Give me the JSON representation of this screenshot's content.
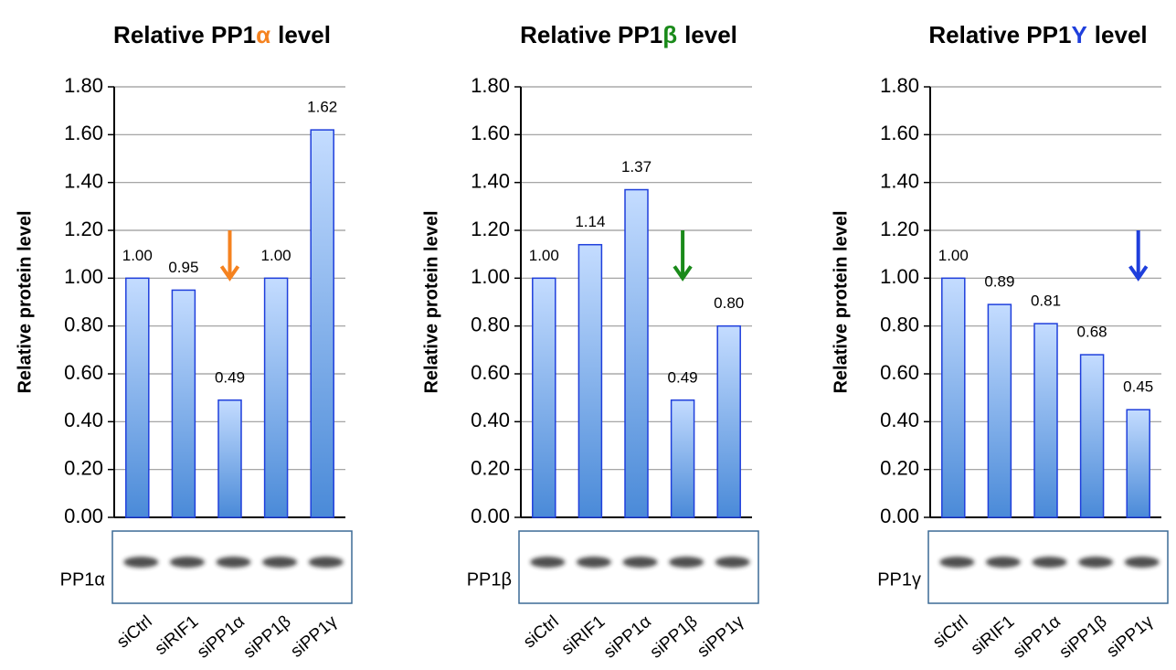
{
  "chart_data": [
    {
      "type": "bar",
      "title": {
        "prefix": "Relative PP1",
        "symbol": "α",
        "suffix": "level"
      },
      "symbol_color": "#f5821f",
      "y_label": "Relative protein level",
      "categories": [
        "siCtrl",
        "siRIF1",
        "siPP1α",
        "siPP1β",
        "siPP1γ"
      ],
      "values": [
        1.0,
        0.95,
        0.49,
        1.0,
        1.62
      ],
      "value_labels": [
        "1.00",
        "0.95",
        "0.49",
        "1.00",
        "1.62"
      ],
      "ylim": [
        0,
        1.8
      ],
      "yticks": [
        {
          "value": 0,
          "label": "0.00"
        },
        {
          "value": 0.2,
          "label": "0.20"
        },
        {
          "value": 0.4,
          "label": "0.40"
        },
        {
          "value": 0.6,
          "label": "0.60"
        },
        {
          "value": 0.8,
          "label": "0.80"
        },
        {
          "value": 1,
          "label": "1.00"
        },
        {
          "value": 1.2,
          "label": "1.20"
        },
        {
          "value": 1.4,
          "label": "1.40"
        },
        {
          "value": 1.6,
          "label": "1.60"
        },
        {
          "value": 1.8,
          "label": "1.80"
        }
      ],
      "grid": true,
      "color": "#1f3fdc",
      "arrow_at": 2,
      "blot_label": "PP1α"
    },
    {
      "type": "bar",
      "title": {
        "prefix": "Relative PP1",
        "symbol": "β",
        "suffix": "level"
      },
      "symbol_color": "#1a8a1a",
      "y_label": "Relative protein level",
      "categories": [
        "siCtrl",
        "siRIF1",
        "siPP1α",
        "siPP1β",
        "siPP1γ"
      ],
      "values": [
        1.0,
        1.14,
        1.37,
        0.49,
        0.8
      ],
      "value_labels": [
        "1.00",
        "1.14",
        "1.37",
        "0.49",
        "0.80"
      ],
      "ylim": [
        0,
        1.8
      ],
      "yticks": [
        {
          "value": 0,
          "label": "0.00"
        },
        {
          "value": 0.2,
          "label": "0.20"
        },
        {
          "value": 0.4,
          "label": "0.40"
        },
        {
          "value": 0.6,
          "label": "0.60"
        },
        {
          "value": 0.8,
          "label": "0.80"
        },
        {
          "value": 1,
          "label": "1.00"
        },
        {
          "value": 1.2,
          "label": "1.20"
        },
        {
          "value": 1.4,
          "label": "1.40"
        },
        {
          "value": 1.6,
          "label": "1.60"
        },
        {
          "value": 1.8,
          "label": "1.80"
        }
      ],
      "grid": true,
      "color": "#1f3fdc",
      "arrow_at": 3,
      "blot_label": "PP1β"
    },
    {
      "type": "bar",
      "title": {
        "prefix": "Relative PP1",
        "symbol": "Y",
        "suffix": "level"
      },
      "symbol_color": "#1f3fdc",
      "y_label": "Relative protein level",
      "categories": [
        "siCtrl",
        "siRIF1",
        "siPP1α",
        "siPP1β",
        "siPP1γ"
      ],
      "values": [
        1.0,
        0.89,
        0.81,
        0.68,
        0.45
      ],
      "value_labels": [
        "1.00",
        "0.89",
        "0.81",
        "0.68",
        "0.45"
      ],
      "ylim": [
        0,
        1.8
      ],
      "yticks": [
        {
          "value": 0,
          "label": "0.00"
        },
        {
          "value": 0.2,
          "label": "0.20"
        },
        {
          "value": 0.4,
          "label": "0.40"
        },
        {
          "value": 0.6,
          "label": "0.60"
        },
        {
          "value": 0.8,
          "label": "0.80"
        },
        {
          "value": 1,
          "label": "1.00"
        },
        {
          "value": 1.2,
          "label": "1.20"
        },
        {
          "value": 1.4,
          "label": "1.40"
        },
        {
          "value": 1.6,
          "label": "1.60"
        },
        {
          "value": 1.8,
          "label": "1.80"
        }
      ],
      "grid": true,
      "color": "#1f3fdc",
      "arrow_at": 4,
      "blot_label": "PP1γ"
    }
  ]
}
